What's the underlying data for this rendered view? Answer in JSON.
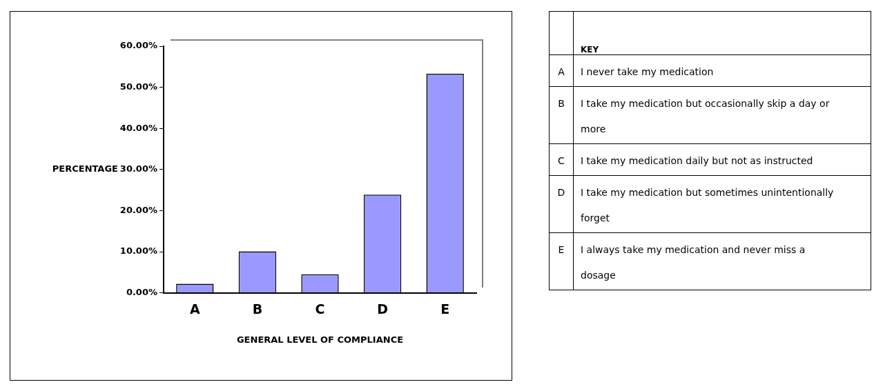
{
  "chart_data": [
    {
      "type": "bar",
      "xlabel": "GENERAL LEVEL OF COMPLIANCE",
      "ylabel": "PERCENTAGE",
      "categories": [
        "A",
        "B",
        "C",
        "D",
        "E"
      ],
      "values": [
        2.2,
        10.1,
        4.5,
        23.9,
        53.3
      ],
      "color": "#9999ff",
      "ylim": [
        0,
        60
      ],
      "yticks": [
        {
          "value": 0,
          "label": "0.00%"
        },
        {
          "value": 10,
          "label": "10.00%"
        },
        {
          "value": 20,
          "label": "20.00%"
        },
        {
          "value": 30,
          "label": "30.00%"
        },
        {
          "value": 40,
          "label": "40.00%"
        },
        {
          "value": 50,
          "label": "50.00%"
        },
        {
          "value": 60,
          "label": "60.00%"
        }
      ],
      "grid": false,
      "legend": false
    },
    {
      "type": "other",
      "title": "KEY",
      "categories": [
        "A",
        "B",
        "C",
        "D",
        "E"
      ],
      "annotations": [
        "I never take my medication",
        "I take my medication but occasionally skip a day or more",
        "I take my medication daily but not as instructed",
        "I take my medication but sometimes unintentionally forget",
        "I always take my medication and never miss a dosage"
      ]
    }
  ]
}
